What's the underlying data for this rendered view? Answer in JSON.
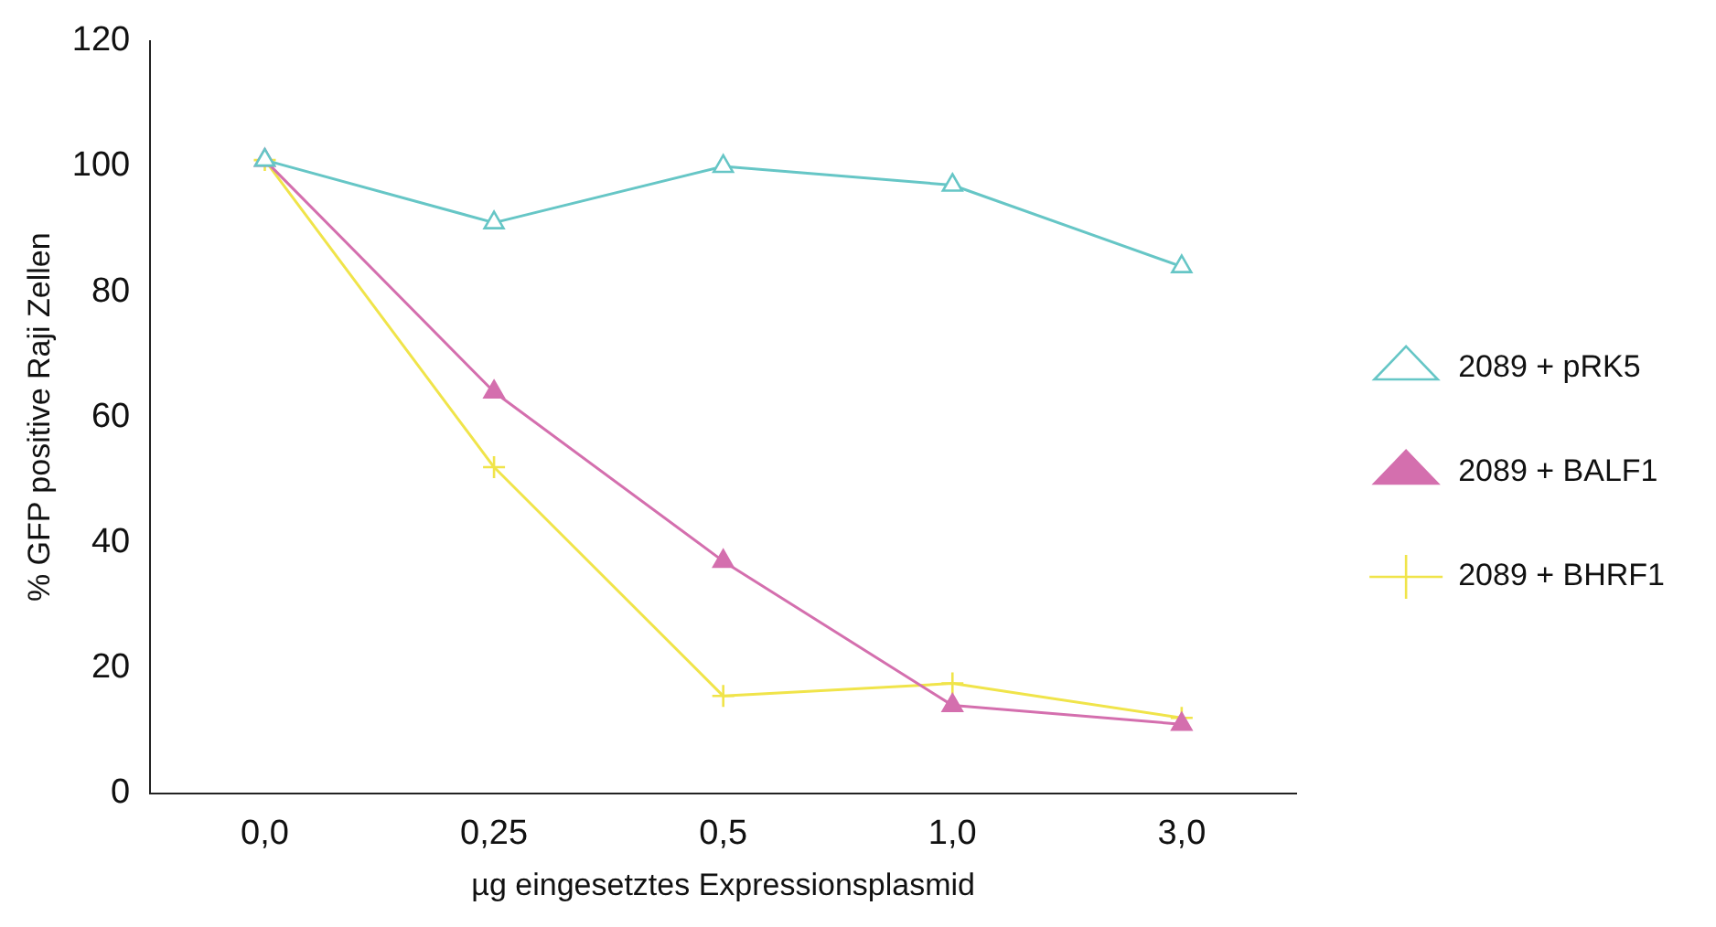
{
  "chart_data": {
    "type": "line",
    "xlabel": "µg eingesetztes Expressionsplasmid",
    "ylabel": "% GFP positive Raji Zellen",
    "categories": [
      "0,0",
      "0,25",
      "0,5",
      "1,0",
      "3,0"
    ],
    "ylim": [
      0,
      120
    ],
    "yticks": [
      0,
      20,
      40,
      60,
      80,
      100,
      120
    ],
    "grid": false,
    "legend": "right",
    "series": [
      {
        "name": "2089 + pRK5",
        "color": "#66c6c6",
        "marker": "triangle-open",
        "values": [
          101,
          91,
          100,
          97,
          84
        ]
      },
      {
        "name": "2089 + BALF1",
        "color": "#d46fae",
        "marker": "triangle",
        "values": [
          101,
          64,
          37,
          14,
          11
        ]
      },
      {
        "name": "2089 + BHRF1",
        "color": "#f0e44a",
        "marker": "cross",
        "values": [
          101,
          52,
          15.5,
          17.5,
          12
        ]
      }
    ]
  }
}
